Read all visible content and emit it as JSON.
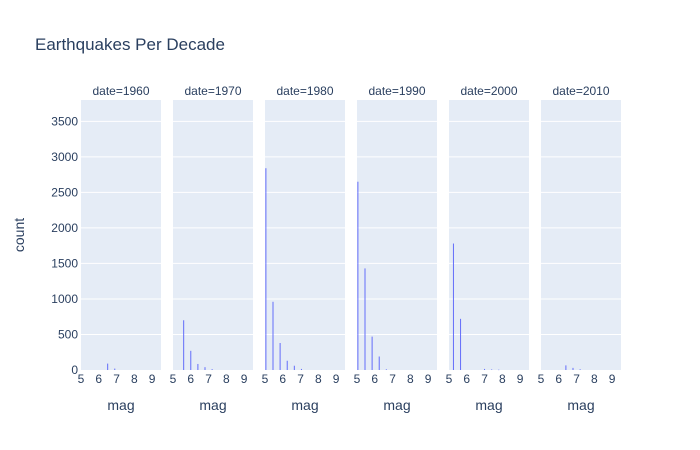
{
  "chart_data": {
    "type": "bar",
    "title": "Earthquakes Per Decade",
    "xlabel": "mag",
    "ylabel": "count",
    "ylim": [
      0,
      3800
    ],
    "xlim": [
      5,
      9.5
    ],
    "y_ticks": [
      0,
      500,
      1000,
      1500,
      2000,
      2500,
      3000,
      3500
    ],
    "x_ticks": [
      5,
      6,
      7,
      8,
      9
    ],
    "grid": true,
    "bar_color": "#636efa",
    "plot_bg": "#e5ecf6",
    "panels": [
      {
        "label": "date=1960",
        "bars": [
          {
            "x": 6.5,
            "y": 90
          },
          {
            "x": 6.9,
            "y": 20
          }
        ]
      },
      {
        "label": "date=1970",
        "bars": [
          {
            "x": 5.6,
            "y": 700
          },
          {
            "x": 6.0,
            "y": 270
          },
          {
            "x": 6.4,
            "y": 85
          },
          {
            "x": 6.8,
            "y": 40
          },
          {
            "x": 7.2,
            "y": 12
          }
        ]
      },
      {
        "label": "date=1980",
        "bars": [
          {
            "x": 5.05,
            "y": 2840
          },
          {
            "x": 5.45,
            "y": 960
          },
          {
            "x": 5.85,
            "y": 380
          },
          {
            "x": 6.25,
            "y": 130
          },
          {
            "x": 6.65,
            "y": 60
          },
          {
            "x": 7.05,
            "y": 15
          }
        ]
      },
      {
        "label": "date=1990",
        "bars": [
          {
            "x": 5.05,
            "y": 2650
          },
          {
            "x": 5.45,
            "y": 1430
          },
          {
            "x": 5.85,
            "y": 470
          },
          {
            "x": 6.25,
            "y": 190
          },
          {
            "x": 6.65,
            "y": 10
          }
        ]
      },
      {
        "label": "date=2000",
        "bars": [
          {
            "x": 5.25,
            "y": 1780
          },
          {
            "x": 5.65,
            "y": 720
          },
          {
            "x": 7.0,
            "y": 15
          },
          {
            "x": 7.4,
            "y": 8
          },
          {
            "x": 7.8,
            "y": 5
          }
        ]
      },
      {
        "label": "date=2010",
        "bars": [
          {
            "x": 6.4,
            "y": 65
          },
          {
            "x": 6.8,
            "y": 30
          },
          {
            "x": 7.2,
            "y": 10
          }
        ]
      }
    ]
  }
}
